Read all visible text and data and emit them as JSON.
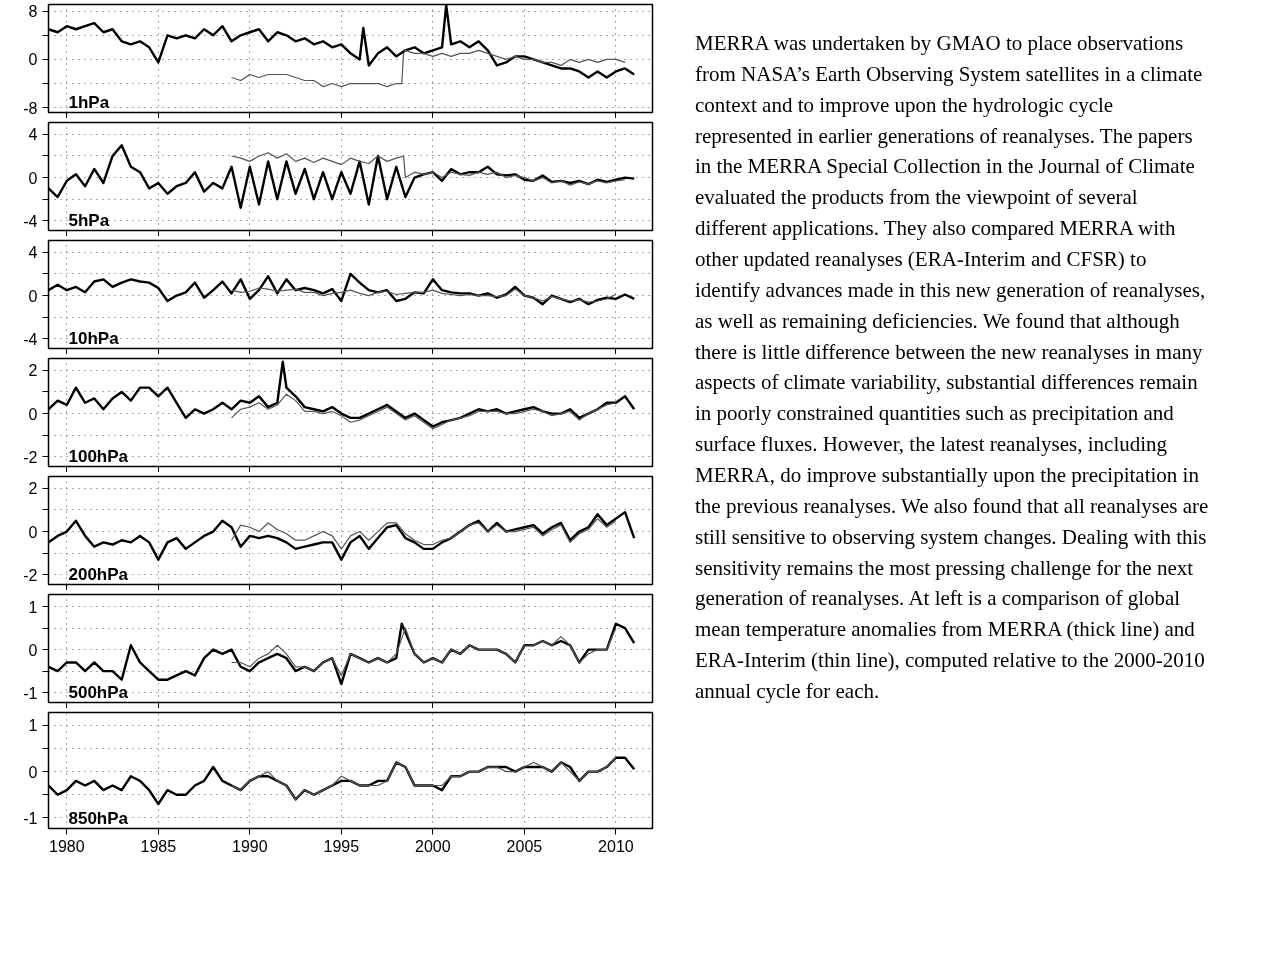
{
  "chart_data": [
    {
      "type": "line",
      "xlim": [
        1979,
        2012
      ],
      "xticks": [
        1980,
        1985,
        1990,
        1995,
        2000,
        2005,
        2010
      ],
      "ylim": [
        -8.8,
        9.1
      ],
      "yticks": [
        8,
        {
          "value": 4,
          "label": null
        },
        0,
        {
          "value": -4,
          "label": null
        },
        -8
      ],
      "grid": true,
      "tick_labels": "y",
      "annotations": [
        "1hPa"
      ],
      "series": [
        {
          "color": "#000000",
          "x": [
            1979,
            1979.5,
            1980,
            1980.5,
            1981,
            1981.5,
            1982,
            1982.5,
            1983,
            1983.5,
            1984,
            1984.5,
            1985,
            1985.5,
            1986,
            1986.5,
            1987,
            1987.5,
            1988,
            1988.5,
            1989,
            1989.5,
            1990,
            1990.5,
            1991,
            1991.5,
            1992,
            1992.5,
            1993,
            1993.5,
            1994,
            1994.5,
            1995,
            1995.5,
            1996,
            1996.2,
            1996.5,
            1997,
            1997.5,
            1998,
            1998.5,
            1999,
            1999.5,
            2000,
            2000.5,
            2000.73,
            2001,
            2001.5,
            2002,
            2002.5,
            2003,
            2003.5,
            2004,
            2004.5,
            2005,
            2005.5,
            2006,
            2006.5,
            2007,
            2007.5,
            2008,
            2008.5,
            2009,
            2009.5,
            2010,
            2010.5,
            2011
          ],
          "values": [
            5,
            4.5,
            5.5,
            5,
            5.5,
            6,
            4.5,
            5,
            3,
            2.5,
            3,
            2,
            -0.5,
            4,
            3.5,
            4,
            3.5,
            5,
            4,
            5.5,
            3,
            4,
            4.5,
            5,
            3,
            4.5,
            4,
            3,
            3.5,
            2.5,
            3,
            2,
            2.5,
            1,
            0,
            5.2,
            -1,
            1,
            2,
            0.5,
            1.5,
            2,
            1,
            1.5,
            2,
            9,
            2.5,
            3,
            2,
            3,
            1.5,
            -1,
            -0.5,
            0.5,
            0.5,
            0,
            -0.5,
            -1,
            -1.5,
            -1.5,
            -2,
            -3,
            -2,
            -3,
            -2,
            -1.5,
            -2.5
          ]
        },
        {
          "color": "#555555",
          "x": [
            1989,
            1989.5,
            1990,
            1990.5,
            1991,
            1991.5,
            1992,
            1992.5,
            1993,
            1993.5,
            1994,
            1994.5,
            1995,
            1995.5,
            1996,
            1996.5,
            1997,
            1997.5,
            1998,
            1998.3,
            1998.4,
            1998.5,
            1999,
            1999.5,
            2000,
            2000.5,
            2001,
            2001.5,
            2002,
            2002.5,
            2003,
            2003.5,
            2004,
            2004.5,
            2005,
            2005.5,
            2006,
            2006.5,
            2007,
            2007.5,
            2008,
            2008.5,
            2009,
            2009.5,
            2010,
            2010.5
          ],
          "values": [
            -3,
            -3.5,
            -2.5,
            -3,
            -2.5,
            -2.5,
            -2.5,
            -3,
            -3.5,
            -3.5,
            -4.5,
            -4,
            -4.5,
            -4,
            -4,
            -4,
            -4,
            -4.5,
            -4,
            -4,
            1,
            1.5,
            1,
            1,
            0.5,
            1,
            0.5,
            1,
            1,
            1.5,
            1,
            0.5,
            0,
            0.5,
            0,
            0,
            -0.5,
            -0.5,
            -1,
            0,
            -0.5,
            0,
            -0.5,
            0,
            0,
            -0.5
          ]
        }
      ]
    },
    {
      "type": "line",
      "xlim": [
        1979,
        2012
      ],
      "xticks": [
        1980,
        1985,
        1990,
        1995,
        2000,
        2005,
        2010
      ],
      "ylim": [
        -4.9,
        5.1
      ],
      "yticks": [
        4,
        {
          "value": 2,
          "label": null
        },
        0,
        {
          "value": -2,
          "label": null
        },
        -4
      ],
      "grid": true,
      "tick_labels": "y",
      "annotations": [
        "5hPa"
      ],
      "series": [
        {
          "color": "#000000",
          "x": [
            1979,
            1979.5,
            1980,
            1980.5,
            1981,
            1981.5,
            1982,
            1982.5,
            1983,
            1983.5,
            1984,
            1984.5,
            1985,
            1985.5,
            1986,
            1986.5,
            1987,
            1987.5,
            1988,
            1988.5,
            1989,
            1989.5,
            1990,
            1990.5,
            1991,
            1991.5,
            1992,
            1992.5,
            1993,
            1993.5,
            1994,
            1994.5,
            1995,
            1995.5,
            1996,
            1996.5,
            1997,
            1997.5,
            1998,
            1998.5,
            1999,
            1999.5,
            2000,
            2000.5,
            2001,
            2001.5,
            2002,
            2002.5,
            2003,
            2003.5,
            2004,
            2004.5,
            2005,
            2005.5,
            2006,
            2006.5,
            2007,
            2007.5,
            2008,
            2008.5,
            2009,
            2009.5,
            2010,
            2010.5,
            2011
          ],
          "values": [
            -1,
            -1.8,
            -0.3,
            0.3,
            -0.8,
            0.8,
            -0.5,
            2,
            3,
            1,
            0.5,
            -1,
            -0.5,
            -1.5,
            -0.8,
            -0.5,
            0.5,
            -1.3,
            -0.5,
            -1,
            1,
            -2.8,
            1,
            -2.5,
            1.5,
            -2,
            1.5,
            -1.5,
            0.8,
            -2,
            0.5,
            -2,
            0.5,
            -1.5,
            1.5,
            -2.5,
            2,
            -2,
            1,
            -1.8,
            0,
            0.3,
            0.5,
            -0.3,
            0.8,
            0.3,
            0.5,
            0.5,
            1,
            0.3,
            0.2,
            0.3,
            -0.2,
            -0.3,
            0.2,
            -0.4,
            -0.3,
            -0.5,
            -0.3,
            -0.6,
            -0.2,
            -0.4,
            -0.2,
            0,
            -0.1
          ]
        },
        {
          "color": "#555555",
          "x": [
            1989,
            1989.5,
            1990,
            1990.5,
            1991,
            1991.5,
            1992,
            1992.5,
            1993,
            1993.5,
            1994,
            1994.5,
            1995,
            1995.5,
            1996,
            1996.5,
            1997,
            1997.5,
            1998,
            1998.4,
            1998.5,
            1999,
            1999.5,
            2000,
            2000.5,
            2001,
            2001.5,
            2002,
            2002.5,
            2003,
            2003.5,
            2004,
            2004.5,
            2005,
            2005.5,
            2006,
            2006.5,
            2007,
            2007.5,
            2008,
            2008.5,
            2009,
            2009.5,
            2010,
            2010.5
          ],
          "values": [
            2,
            1.8,
            1.5,
            2,
            2.3,
            1.8,
            2.2,
            1.5,
            1.8,
            1.4,
            1.8,
            1.5,
            1.2,
            1.8,
            1.5,
            1.3,
            2,
            1.5,
            1.8,
            2,
            0,
            0.5,
            0.3,
            0.5,
            0,
            0.5,
            0.3,
            0.2,
            0.5,
            0.3,
            0.5,
            0,
            0.2,
            0,
            -0.3,
            0,
            -0.5,
            -0.3,
            -0.7,
            -0.4,
            -0.6,
            -0.3,
            -0.5,
            -0.3,
            -0.2
          ]
        }
      ]
    },
    {
      "type": "line",
      "xlim": [
        1979,
        2012
      ],
      "xticks": [
        1980,
        1985,
        1990,
        1995,
        2000,
        2005,
        2010
      ],
      "ylim": [
        -4.9,
        5.1
      ],
      "yticks": [
        4,
        {
          "value": 2,
          "label": null
        },
        0,
        {
          "value": -2,
          "label": null
        },
        -4
      ],
      "grid": true,
      "tick_labels": "y",
      "annotations": [
        "10hPa"
      ],
      "series": [
        {
          "color": "#000000",
          "x": [
            1979,
            1979.5,
            1980,
            1980.5,
            1981,
            1981.5,
            1982,
            1982.5,
            1983,
            1983.5,
            1984,
            1984.5,
            1985,
            1985.5,
            1986,
            1986.5,
            1987,
            1987.5,
            1988,
            1988.5,
            1989,
            1989.5,
            1990,
            1990.5,
            1991,
            1991.5,
            1992,
            1992.5,
            1993,
            1993.5,
            1994,
            1994.5,
            1995,
            1995.5,
            1996,
            1996.5,
            1997,
            1997.5,
            1998,
            1998.5,
            1999,
            1999.5,
            2000,
            2000.5,
            2001,
            2001.5,
            2002,
            2002.5,
            2003,
            2003.5,
            2004,
            2004.5,
            2005,
            2005.5,
            2006,
            2006.5,
            2007,
            2007.5,
            2008,
            2008.5,
            2009,
            2009.5,
            2010,
            2010.5,
            2011
          ],
          "values": [
            0.5,
            1,
            0.5,
            0.8,
            0.3,
            1.3,
            1.5,
            0.8,
            1.2,
            1.5,
            1.3,
            1.2,
            0.7,
            -0.5,
            0,
            0.3,
            1.2,
            -0.2,
            0.5,
            1.3,
            0.2,
            1.5,
            -0.3,
            0.5,
            1.8,
            0.2,
            1.5,
            0.5,
            0.7,
            0.5,
            0.2,
            0.6,
            -0.5,
            2,
            1.2,
            0.5,
            0.3,
            0.5,
            -0.5,
            -0.3,
            0.3,
            0.2,
            1.5,
            0.5,
            0.3,
            0.2,
            0.2,
            0,
            0.2,
            -0.2,
            0.1,
            0.8,
            0,
            -0.2,
            -0.8,
            0,
            -0.3,
            -0.6,
            -0.3,
            -0.8,
            -0.4,
            -0.2,
            -0.3,
            0.1,
            -0.3
          ]
        },
        {
          "color": "#555555",
          "x": [
            1989,
            1989.5,
            1990,
            1990.5,
            1991,
            1991.5,
            1992,
            1992.5,
            1993,
            1993.5,
            1994,
            1994.5,
            1995,
            1995.5,
            1996,
            1996.5,
            1997,
            1997.5,
            1998,
            1998.5,
            1999,
            1999.5,
            2000,
            2000.5,
            2001,
            2001.5,
            2002,
            2002.5,
            2003,
            2003.5,
            2004,
            2004.5,
            2005,
            2005.5,
            2006,
            2006.5,
            2007,
            2007.5,
            2008,
            2008.5,
            2009,
            2009.5,
            2010
          ],
          "values": [
            0.5,
            0.3,
            0.4,
            0.7,
            0.6,
            0.4,
            0.5,
            0.6,
            0.3,
            0.3,
            0,
            0.2,
            0.3,
            0.5,
            0.2,
            0,
            0.3,
            0.4,
            0.1,
            0.2,
            0.3,
            0.3,
            0.5,
            0.2,
            0.1,
            0,
            0.1,
            0,
            0,
            -0.1,
            0,
            0.6,
            0,
            -0.2,
            -0.5,
            -0.1,
            -0.3,
            -0.5,
            -0.4,
            -0.6,
            -0.5,
            -0.3,
            0.1
          ]
        }
      ]
    },
    {
      "type": "line",
      "xlim": [
        1979,
        2012
      ],
      "xticks": [
        1980,
        1985,
        1990,
        1995,
        2000,
        2005,
        2010
      ],
      "ylim": [
        -2.45,
        2.55
      ],
      "yticks": [
        2,
        {
          "value": 1,
          "label": null
        },
        0,
        {
          "value": -1,
          "label": null
        },
        -2
      ],
      "grid": true,
      "tick_labels": "y",
      "annotations": [
        "100hPa"
      ],
      "series": [
        {
          "color": "#000000",
          "x": [
            1979,
            1979.5,
            1980,
            1980.5,
            1981,
            1981.5,
            1982,
            1982.5,
            1983,
            1983.5,
            1984,
            1984.5,
            1985,
            1985.5,
            1986,
            1986.5,
            1987,
            1987.5,
            1988,
            1988.5,
            1989,
            1989.5,
            1990,
            1990.5,
            1991,
            1991.5,
            1991.8,
            1992,
            1992.5,
            1993,
            1993.5,
            1994,
            1994.5,
            1995,
            1995.5,
            1996,
            1996.5,
            1997,
            1997.5,
            1998,
            1998.5,
            1999,
            1999.5,
            2000,
            2000.5,
            2001,
            2001.5,
            2002,
            2002.5,
            2003,
            2003.5,
            2004,
            2004.5,
            2005,
            2005.5,
            2006,
            2006.5,
            2007,
            2007.5,
            2008,
            2008.5,
            2009,
            2009.5,
            2010,
            2010.5,
            2011
          ],
          "values": [
            0.2,
            0.6,
            0.4,
            1.2,
            0.5,
            0.7,
            0.2,
            0.7,
            1,
            0.6,
            1.2,
            1.2,
            0.8,
            1.2,
            0.5,
            -0.2,
            0.2,
            0,
            0.2,
            0.5,
            0.2,
            0.6,
            0.5,
            0.8,
            0.3,
            0.5,
            2.4,
            1.2,
            0.8,
            0.3,
            0.2,
            0.1,
            0.3,
            0,
            -0.2,
            -0.2,
            0,
            0.2,
            0.4,
            0.1,
            -0.2,
            0,
            -0.3,
            -0.6,
            -0.4,
            -0.3,
            -0.2,
            0,
            0.2,
            0.1,
            0.2,
            0,
            0.1,
            0.2,
            0.3,
            0.1,
            0,
            0,
            0.2,
            -0.2,
            0,
            0.2,
            0.5,
            0.5,
            0.8,
            0.2
          ]
        },
        {
          "color": "#555555",
          "x": [
            1989,
            1989.5,
            1990,
            1990.5,
            1991,
            1991.5,
            1992,
            1992.5,
            1993,
            1993.5,
            1994,
            1994.5,
            1995,
            1995.5,
            1996,
            1996.5,
            1997,
            1997.5,
            1998,
            1998.5,
            1999,
            1999.5,
            2000,
            2000.5,
            2001,
            2001.5,
            2002,
            2002.5,
            2003,
            2003.5,
            2004,
            2004.5,
            2005,
            2005.5,
            2006,
            2006.5,
            2007,
            2007.5,
            2008,
            2008.5,
            2009,
            2009.5,
            2010
          ],
          "values": [
            -0.2,
            0.2,
            0.3,
            0.5,
            0.2,
            0.4,
            0.9,
            0.6,
            0.1,
            0.1,
            0,
            0.1,
            -0.1,
            -0.4,
            -0.3,
            -0.1,
            0.1,
            0.3,
            0,
            -0.3,
            -0.1,
            -0.4,
            -0.7,
            -0.5,
            -0.3,
            -0.2,
            -0.1,
            0.1,
            0.1,
            0.1,
            0,
            0,
            0.1,
            0.2,
            0.1,
            -0.1,
            0,
            0.1,
            -0.3,
            0,
            0.2,
            0.4,
            0.5
          ]
        }
      ]
    },
    {
      "type": "line",
      "xlim": [
        1979,
        2012
      ],
      "xticks": [
        1980,
        1985,
        1990,
        1995,
        2000,
        2005,
        2010
      ],
      "ylim": [
        -2.45,
        2.55
      ],
      "yticks": [
        2,
        {
          "value": 1,
          "label": null
        },
        0,
        {
          "value": -1,
          "label": null
        },
        -2
      ],
      "grid": true,
      "tick_labels": "y",
      "annotations": [
        "200hPa"
      ],
      "series": [
        {
          "color": "#000000",
          "x": [
            1979,
            1979.5,
            1980,
            1980.5,
            1981,
            1981.5,
            1982,
            1982.5,
            1983,
            1983.5,
            1984,
            1984.5,
            1985,
            1985.5,
            1986,
            1986.5,
            1987,
            1987.5,
            1988,
            1988.5,
            1989,
            1989.5,
            1990,
            1990.5,
            1991,
            1991.5,
            1992,
            1992.5,
            1993,
            1993.5,
            1994,
            1994.5,
            1995,
            1995.5,
            1996,
            1996.5,
            1997,
            1997.5,
            1998,
            1998.5,
            1999,
            1999.5,
            2000,
            2000.5,
            2001,
            2001.5,
            2002,
            2002.5,
            2003,
            2003.5,
            2004,
            2004.5,
            2005,
            2005.5,
            2006,
            2006.5,
            2007,
            2007.5,
            2008,
            2008.5,
            2009,
            2009.5,
            2010,
            2010.5,
            2011
          ],
          "values": [
            -0.5,
            -0.2,
            0,
            0.5,
            -0.2,
            -0.7,
            -0.5,
            -0.6,
            -0.4,
            -0.5,
            -0.2,
            -0.5,
            -1.3,
            -0.5,
            -0.3,
            -0.8,
            -0.5,
            -0.2,
            0,
            0.5,
            0.2,
            -0.7,
            -0.2,
            -0.3,
            -0.2,
            -0.3,
            -0.5,
            -0.8,
            -0.7,
            -0.6,
            -0.5,
            -0.5,
            -1.3,
            -0.5,
            -0.2,
            -0.8,
            -0.3,
            0.2,
            0.3,
            -0.3,
            -0.5,
            -0.8,
            -0.8,
            -0.5,
            -0.3,
            0,
            0.3,
            0.5,
            0,
            0.4,
            0,
            0.1,
            0.2,
            0.3,
            -0.1,
            0.2,
            0.4,
            -0.4,
            0,
            0.2,
            0.8,
            0.3,
            0.6,
            0.9,
            -0.3
          ]
        },
        {
          "color": "#555555",
          "x": [
            1989,
            1989.5,
            1990,
            1990.5,
            1991,
            1991.5,
            1992,
            1992.5,
            1993,
            1993.5,
            1994,
            1994.5,
            1995,
            1995.5,
            1996,
            1996.5,
            1997,
            1997.5,
            1998,
            1998.5,
            1999,
            1999.5,
            2000,
            2000.5,
            2001,
            2001.5,
            2002,
            2002.5,
            2003,
            2003.5,
            2004,
            2004.5,
            2005,
            2005.5,
            2006,
            2006.5,
            2007,
            2007.5,
            2008,
            2008.5,
            2009,
            2009.5,
            2010
          ],
          "values": [
            -0.4,
            0.3,
            0.2,
            0,
            0.4,
            0.1,
            -0.1,
            -0.4,
            -0.4,
            -0.2,
            0,
            -0.2,
            -0.8,
            -0.2,
            0,
            -0.4,
            0,
            0.4,
            0.4,
            -0.1,
            -0.4,
            -0.6,
            -0.6,
            -0.4,
            -0.3,
            0,
            0.3,
            0.4,
            0,
            0.3,
            0,
            0,
            0.1,
            0.2,
            -0.2,
            0.1,
            0.3,
            -0.5,
            -0.1,
            0.1,
            0.6,
            0.2,
            0.5
          ]
        }
      ]
    },
    {
      "type": "line",
      "xlim": [
        1979,
        2012
      ],
      "xticks": [
        1980,
        1985,
        1990,
        1995,
        2000,
        2005,
        2010
      ],
      "ylim": [
        -1.23,
        1.28
      ],
      "yticks": [
        1,
        {
          "value": 0.5,
          "label": null
        },
        0,
        {
          "value": -0.5,
          "label": null
        },
        -1
      ],
      "grid": true,
      "tick_labels": "y",
      "annotations": [
        "500hPa"
      ],
      "series": [
        {
          "color": "#000000",
          "x": [
            1979,
            1979.5,
            1980,
            1980.5,
            1981,
            1981.5,
            1982,
            1982.5,
            1983,
            1983.5,
            1984,
            1984.5,
            1985,
            1985.5,
            1986,
            1986.5,
            1987,
            1987.5,
            1988,
            1988.5,
            1989,
            1989.5,
            1990,
            1990.5,
            1991,
            1991.5,
            1992,
            1992.5,
            1993,
            1993.5,
            1994,
            1994.5,
            1995,
            1995.5,
            1996,
            1996.5,
            1997,
            1997.5,
            1998,
            1998.3,
            1998.5,
            1999,
            1999.5,
            2000,
            2000.5,
            2001,
            2001.5,
            2002,
            2002.5,
            2003,
            2003.5,
            2004,
            2004.5,
            2005,
            2005.5,
            2006,
            2006.5,
            2007,
            2007.5,
            2008,
            2008.5,
            2009,
            2009.5,
            2010,
            2010.5,
            2011
          ],
          "values": [
            -0.4,
            -0.5,
            -0.3,
            -0.3,
            -0.5,
            -0.3,
            -0.5,
            -0.5,
            -0.7,
            0.1,
            -0.3,
            -0.5,
            -0.7,
            -0.7,
            -0.6,
            -0.5,
            -0.6,
            -0.2,
            0,
            -0.1,
            0,
            -0.4,
            -0.5,
            -0.3,
            -0.2,
            -0.1,
            -0.2,
            -0.5,
            -0.4,
            -0.5,
            -0.3,
            -0.2,
            -0.8,
            -0.1,
            -0.2,
            -0.3,
            -0.2,
            -0.3,
            -0.2,
            0.6,
            0.4,
            -0.1,
            -0.3,
            -0.2,
            -0.3,
            0,
            -0.1,
            0.1,
            0,
            0,
            0,
            -0.1,
            -0.3,
            0.1,
            0.1,
            0.2,
            0.1,
            0.2,
            0.1,
            -0.3,
            0,
            0,
            0,
            0.6,
            0.5,
            0.15
          ]
        },
        {
          "color": "#555555",
          "x": [
            1989,
            1989.5,
            1990,
            1990.5,
            1991,
            1991.5,
            1992,
            1992.5,
            1993,
            1993.5,
            1994,
            1994.5,
            1995,
            1995.5,
            1996,
            1996.5,
            1997,
            1997.5,
            1998,
            1998.5,
            1999,
            1999.5,
            2000,
            2000.5,
            2001,
            2001.5,
            2002,
            2002.5,
            2003,
            2003.5,
            2004,
            2004.5,
            2005,
            2005.5,
            2006,
            2006.5,
            2007,
            2007.5,
            2008,
            2008.5,
            2009,
            2009.5,
            2010
          ],
          "values": [
            -0.3,
            -0.3,
            -0.4,
            -0.2,
            -0.1,
            0.1,
            -0.1,
            -0.4,
            -0.4,
            -0.5,
            -0.3,
            -0.2,
            -0.6,
            -0.1,
            -0.2,
            -0.3,
            -0.2,
            -0.3,
            -0.1,
            0.5,
            -0.1,
            -0.3,
            -0.2,
            -0.3,
            0,
            -0.1,
            0.1,
            0,
            0,
            0,
            -0.1,
            -0.3,
            0.1,
            0.1,
            0.2,
            0.1,
            0.3,
            0.1,
            -0.3,
            -0.1,
            0,
            0,
            0.5
          ]
        }
      ]
    },
    {
      "type": "line",
      "xlim": [
        1979,
        2012
      ],
      "xticks": [
        1980,
        1985,
        1990,
        1995,
        2000,
        2005,
        2010
      ],
      "ylim": [
        -1.23,
        1.28
      ],
      "yticks": [
        1,
        {
          "value": 0.5,
          "label": null
        },
        0,
        {
          "value": -0.5,
          "label": null
        },
        -1
      ],
      "grid": true,
      "annotations": [
        "850hPa"
      ],
      "series": [
        {
          "color": "#000000",
          "x": [
            1979,
            1979.5,
            1980,
            1980.5,
            1981,
            1981.5,
            1982,
            1982.5,
            1983,
            1983.5,
            1984,
            1984.5,
            1985,
            1985.5,
            1986,
            1986.5,
            1987,
            1987.5,
            1988,
            1988.5,
            1989,
            1989.5,
            1990,
            1990.5,
            1991,
            1991.5,
            1992,
            1992.5,
            1993,
            1993.5,
            1994,
            1994.5,
            1995,
            1995.5,
            1996,
            1996.5,
            1997,
            1997.5,
            1998,
            1998.5,
            1999,
            1999.5,
            2000,
            2000.5,
            2001,
            2001.5,
            2002,
            2002.5,
            2003,
            2003.5,
            2004,
            2004.5,
            2005,
            2005.5,
            2006,
            2006.5,
            2007,
            2007.5,
            2008,
            2008.5,
            2009,
            2009.5,
            2010,
            2010.5,
            2011
          ],
          "values": [
            -0.3,
            -0.5,
            -0.4,
            -0.2,
            -0.3,
            -0.2,
            -0.4,
            -0.3,
            -0.4,
            -0.1,
            -0.2,
            -0.4,
            -0.7,
            -0.4,
            -0.5,
            -0.5,
            -0.3,
            -0.2,
            0.1,
            -0.2,
            -0.3,
            -0.4,
            -0.2,
            -0.1,
            -0.1,
            -0.2,
            -0.3,
            -0.6,
            -0.4,
            -0.5,
            -0.4,
            -0.3,
            -0.2,
            -0.2,
            -0.3,
            -0.3,
            -0.2,
            -0.2,
            0.2,
            0.1,
            -0.3,
            -0.3,
            -0.3,
            -0.4,
            -0.1,
            -0.1,
            0,
            0,
            0.1,
            0.1,
            0.1,
            0,
            0.1,
            0.1,
            0.1,
            0,
            0.2,
            0.1,
            -0.2,
            0,
            0,
            0.1,
            0.3,
            0.3,
            0.05
          ]
        },
        {
          "color": "#555555",
          "x": [
            1989,
            1989.5,
            1990,
            1990.5,
            1991,
            1991.5,
            1992,
            1992.5,
            1993,
            1993.5,
            1994,
            1994.5,
            1995,
            1995.5,
            1996,
            1996.5,
            1997,
            1997.5,
            1998,
            1998.5,
            1999,
            1999.5,
            2000,
            2000.5,
            2001,
            2001.5,
            2002,
            2002.5,
            2003,
            2003.5,
            2004,
            2004.5,
            2005,
            2005.5,
            2006,
            2006.5,
            2007,
            2007.5,
            2008,
            2008.5,
            2009,
            2009.5,
            2010
          ],
          "values": [
            -0.3,
            -0.4,
            -0.2,
            -0.1,
            0,
            -0.2,
            -0.3,
            -0.6,
            -0.4,
            -0.5,
            -0.4,
            -0.3,
            -0.1,
            -0.2,
            -0.3,
            -0.3,
            -0.3,
            -0.2,
            0.2,
            0.1,
            -0.3,
            -0.3,
            -0.3,
            -0.3,
            -0.1,
            -0.1,
            0,
            0,
            0.1,
            0.1,
            0,
            0,
            0.1,
            0.2,
            0.1,
            0,
            0.2,
            0,
            -0.2,
            0,
            0,
            0.1,
            0.3
          ]
        }
      ]
    },
    {
      "type": "other",
      "annotations": [
        "MERRA was undertaken by GMAO to place observations from NASA’s Earth Observing System satellites in a climate context and to improve upon the hydrologic cycle represented in earlier generations of reanalyses. The papers in the MERRA Special Collection in the Journal of Climate evaluated the products from the viewpoint of several different applications. They also compared MERRA with other updated reanalyses (ERA-Interim and CFSR) to identify advances made in this new generation of reanalyses, as well as remaining deficiencies. We found that although there is little difference between the new reanalyses in many aspects of climate variability, substantial differences remain in poorly constrained quantities such as precipitation and surface fluxes. However, the latest reanalyses, including MERRA, do improve substantially upon the precipitation in the previous reanalyses. We also found that all reanalyses are still sensitive to observing system changes. Dealing with this sensitivity remains the most pressing challenge for the next generation of reanalyses. At left is a comparison of global mean temperature anomalies from MERRA (thick line) and ERA-Interim (thin line), computed relative to the 2000-2010 annual cycle for each."
      ]
    }
  ]
}
